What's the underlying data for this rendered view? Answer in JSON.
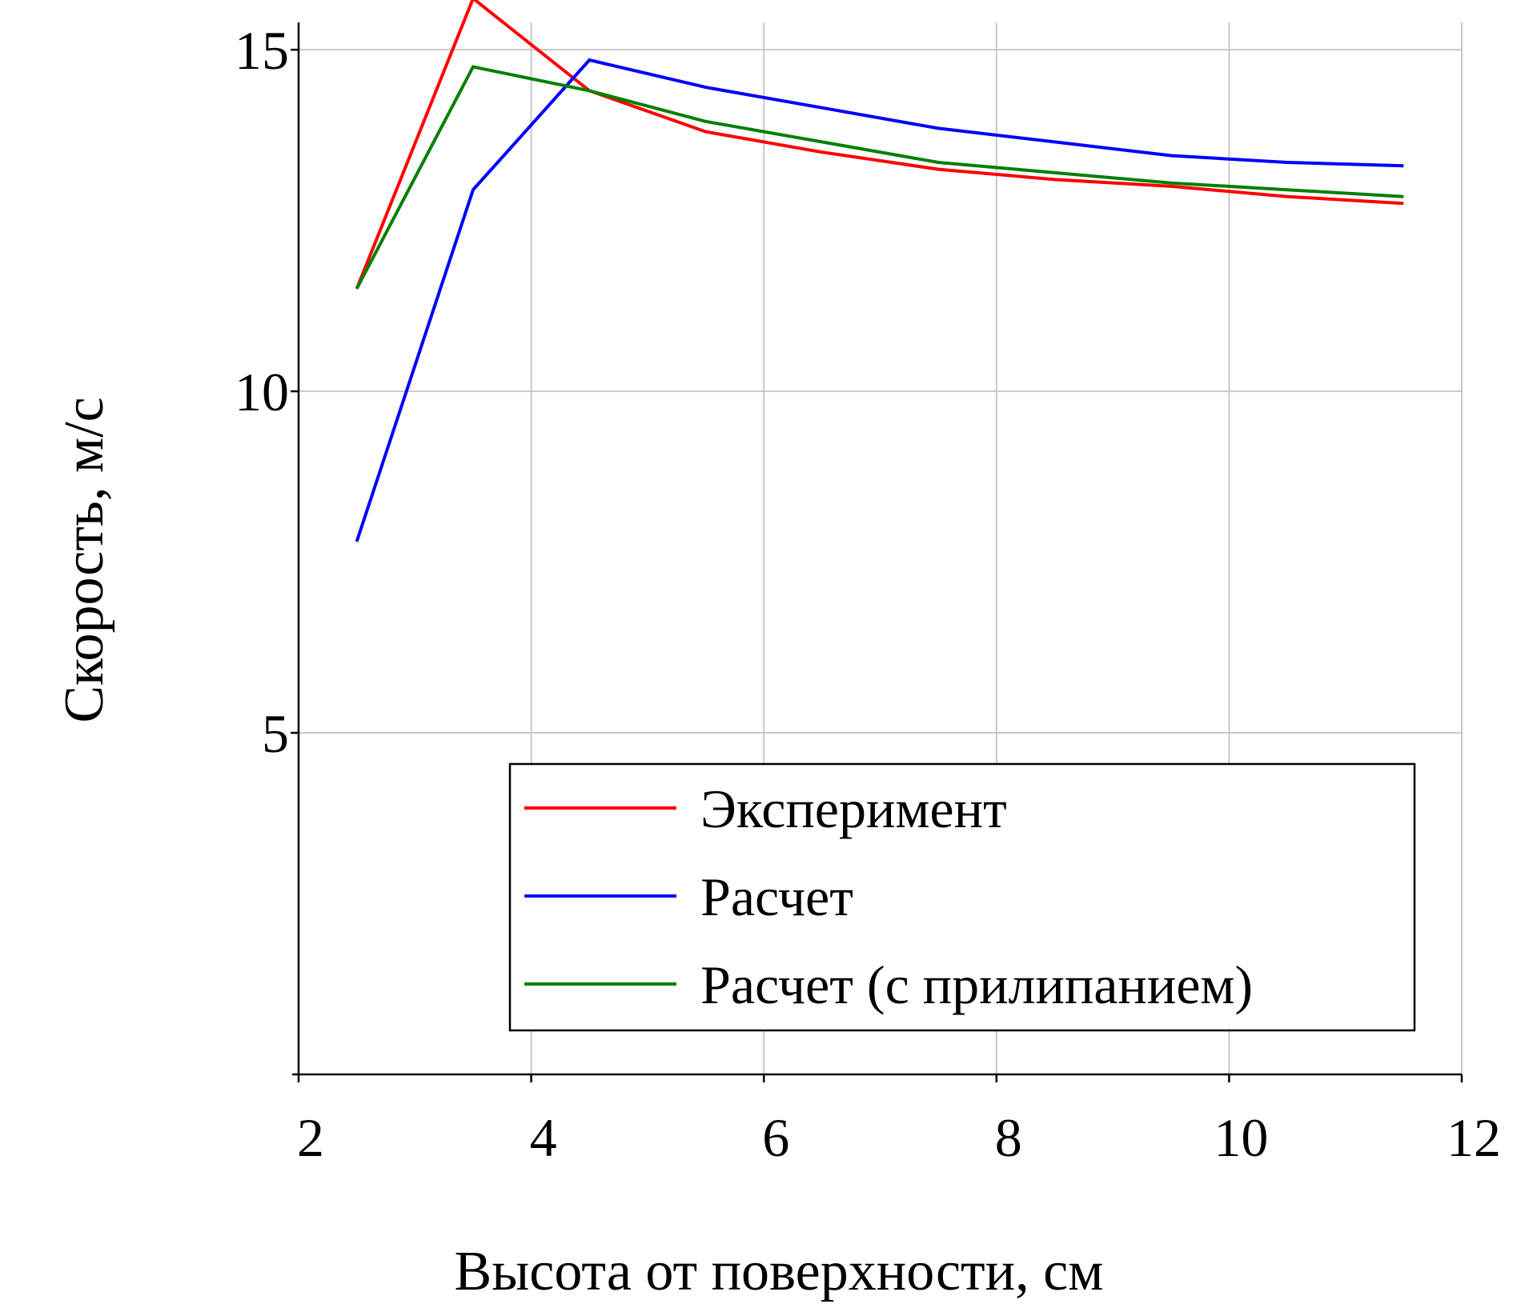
{
  "chart_data": {
    "type": "line",
    "xlabel": "Высота от поверхности, см",
    "ylabel": "Скорость, м/с",
    "xlim": [
      2,
      12
    ],
    "ylim": [
      0,
      15.4
    ],
    "xticks": [
      2,
      4,
      6,
      8,
      10,
      12
    ],
    "yticks": [
      5,
      10,
      15
    ],
    "grid": true,
    "legend_position": "bottom-right",
    "series": [
      {
        "name": "Эксперимент",
        "color": "#ff0000",
        "x": [
          2.5,
          3.5,
          4.5,
          5.5,
          6.5,
          7.5,
          8.5,
          9.5,
          10.5,
          11.5
        ],
        "y": [
          11.5,
          15.75,
          14.4,
          13.8,
          13.5,
          13.25,
          13.1,
          13.0,
          12.85,
          12.75
        ]
      },
      {
        "name": "Расчет",
        "color": "#0000ff",
        "x": [
          2.5,
          3.5,
          4.5,
          5.5,
          6.5,
          7.5,
          8.5,
          9.5,
          10.5,
          11.5
        ],
        "y": [
          7.8,
          12.95,
          14.85,
          14.45,
          14.15,
          13.85,
          13.65,
          13.45,
          13.35,
          13.3
        ]
      },
      {
        "name": "Расчет (с прилипанием)",
        "color": "#008000",
        "x": [
          2.5,
          3.5,
          4.5,
          5.5,
          6.5,
          7.5,
          8.5,
          9.5,
          10.5,
          11.5
        ],
        "y": [
          11.5,
          14.75,
          14.4,
          13.95,
          13.65,
          13.35,
          13.2,
          13.05,
          12.95,
          12.85
        ]
      }
    ]
  }
}
